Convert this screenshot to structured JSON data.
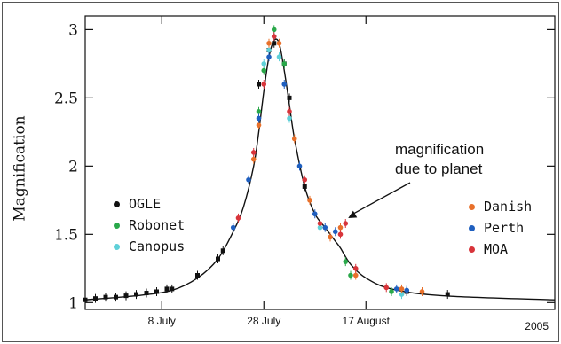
{
  "chart_data": {
    "type": "scatter",
    "ylabel": "Magnification",
    "ylim": [
      0.95,
      3.1
    ],
    "y_ticks": [
      {
        "value": 1,
        "label": "1"
      },
      {
        "value": 1.5,
        "label": "1.5"
      },
      {
        "value": 2,
        "label": "2"
      },
      {
        "value": 2.5,
        "label": "2.5"
      },
      {
        "value": 3,
        "label": "3"
      }
    ],
    "x_range": [
      "2005-06-23",
      "2005-09-23"
    ],
    "x_ticks": [
      {
        "value": "2005-07-08",
        "label": "8 July"
      },
      {
        "value": "2005-07-28",
        "label": "28 July"
      },
      {
        "value": "2005-08-17",
        "label": "17 August"
      }
    ],
    "x_year_label": "2005",
    "model_curve": {
      "x": [
        "2005-06-23",
        "2005-07-03",
        "2005-07-10",
        "2005-07-15",
        "2005-07-19",
        "2005-07-22",
        "2005-07-24",
        "2005-07-26",
        "2005-07-27",
        "2005-07-28",
        "2005-07-29",
        "2005-07-30",
        "2005-07-31",
        "2005-08-01",
        "2005-08-02",
        "2005-08-03",
        "2005-08-05",
        "2005-08-07",
        "2005-08-09",
        "2005-08-10",
        "2005-08-11",
        "2005-08-12",
        "2005-08-14",
        "2005-08-17",
        "2005-08-22",
        "2005-09-01",
        "2005-09-23"
      ],
      "y": [
        1.02,
        1.05,
        1.09,
        1.18,
        1.32,
        1.52,
        1.7,
        2.0,
        2.25,
        2.55,
        2.8,
        2.92,
        2.9,
        2.7,
        2.45,
        2.2,
        1.85,
        1.65,
        1.55,
        1.5,
        1.45,
        1.4,
        1.28,
        1.18,
        1.1,
        1.05,
        1.02
      ]
    },
    "series": [
      {
        "name": "OGLE",
        "color": "#111111",
        "x": [
          "2005-06-23",
          "2005-06-25",
          "2005-06-27",
          "2005-06-29",
          "2005-07-01",
          "2005-07-03",
          "2005-07-05",
          "2005-07-07",
          "2005-07-09",
          "2005-07-10",
          "2005-07-15",
          "2005-07-19",
          "2005-07-20",
          "2005-07-27",
          "2005-07-29",
          "2005-07-30",
          "2005-08-01",
          "2005-08-02",
          "2005-08-05",
          "2005-08-25",
          "2005-09-02"
        ],
        "y": [
          1.02,
          1.03,
          1.04,
          1.04,
          1.05,
          1.06,
          1.07,
          1.08,
          1.1,
          1.1,
          1.2,
          1.32,
          1.38,
          2.6,
          2.85,
          2.9,
          2.75,
          2.5,
          1.85,
          1.08,
          1.06
        ]
      },
      {
        "name": "Robonet",
        "color": "#2aa84a",
        "x": [
          "2005-07-27",
          "2005-07-28",
          "2005-07-30",
          "2005-08-01",
          "2005-08-13",
          "2005-08-14",
          "2005-08-22"
        ],
        "y": [
          2.4,
          2.7,
          3.0,
          2.75,
          1.3,
          1.2,
          1.08
        ]
      },
      {
        "name": "Canopus",
        "color": "#5fd0d8",
        "x": [
          "2005-07-28",
          "2005-07-29",
          "2005-07-30",
          "2005-07-31",
          "2005-08-02",
          "2005-08-08",
          "2005-08-24"
        ],
        "y": [
          2.75,
          2.85,
          2.95,
          2.8,
          2.35,
          1.55,
          1.06
        ]
      },
      {
        "name": "Danish",
        "color": "#e8702a",
        "x": [
          "2005-07-26",
          "2005-07-27",
          "2005-07-29",
          "2005-07-31",
          "2005-08-03",
          "2005-08-06",
          "2005-08-10",
          "2005-08-12",
          "2005-08-15",
          "2005-08-24",
          "2005-08-28"
        ],
        "y": [
          2.05,
          2.3,
          2.9,
          2.9,
          2.2,
          1.75,
          1.48,
          1.55,
          1.2,
          1.1,
          1.08
        ]
      },
      {
        "name": "Perth",
        "color": "#1f5fbf",
        "x": [
          "2005-07-22",
          "2005-07-25",
          "2005-07-27",
          "2005-07-29",
          "2005-08-01",
          "2005-08-04",
          "2005-08-07",
          "2005-08-09",
          "2005-08-11",
          "2005-08-23",
          "2005-08-25"
        ],
        "y": [
          1.55,
          1.9,
          2.35,
          2.8,
          2.6,
          2.0,
          1.65,
          1.55,
          1.52,
          1.1,
          1.09
        ]
      },
      {
        "name": "MOA",
        "color": "#d8343a",
        "x": [
          "2005-07-23",
          "2005-07-26",
          "2005-07-28",
          "2005-07-30",
          "2005-08-02",
          "2005-08-05",
          "2005-08-08",
          "2005-08-12",
          "2005-08-13",
          "2005-08-15",
          "2005-08-21"
        ],
        "y": [
          1.62,
          2.1,
          2.6,
          2.95,
          2.4,
          1.9,
          1.58,
          1.5,
          1.58,
          1.25,
          1.11
        ]
      }
    ],
    "annotation": {
      "line1": "magnification",
      "line2": "due to planet",
      "target_x": "2005-08-13",
      "target_y": 1.58
    },
    "legend": {
      "left": [
        "OGLE",
        "Robonet",
        "Canopus"
      ],
      "right": [
        "Danish",
        "Perth",
        "MOA"
      ]
    }
  }
}
